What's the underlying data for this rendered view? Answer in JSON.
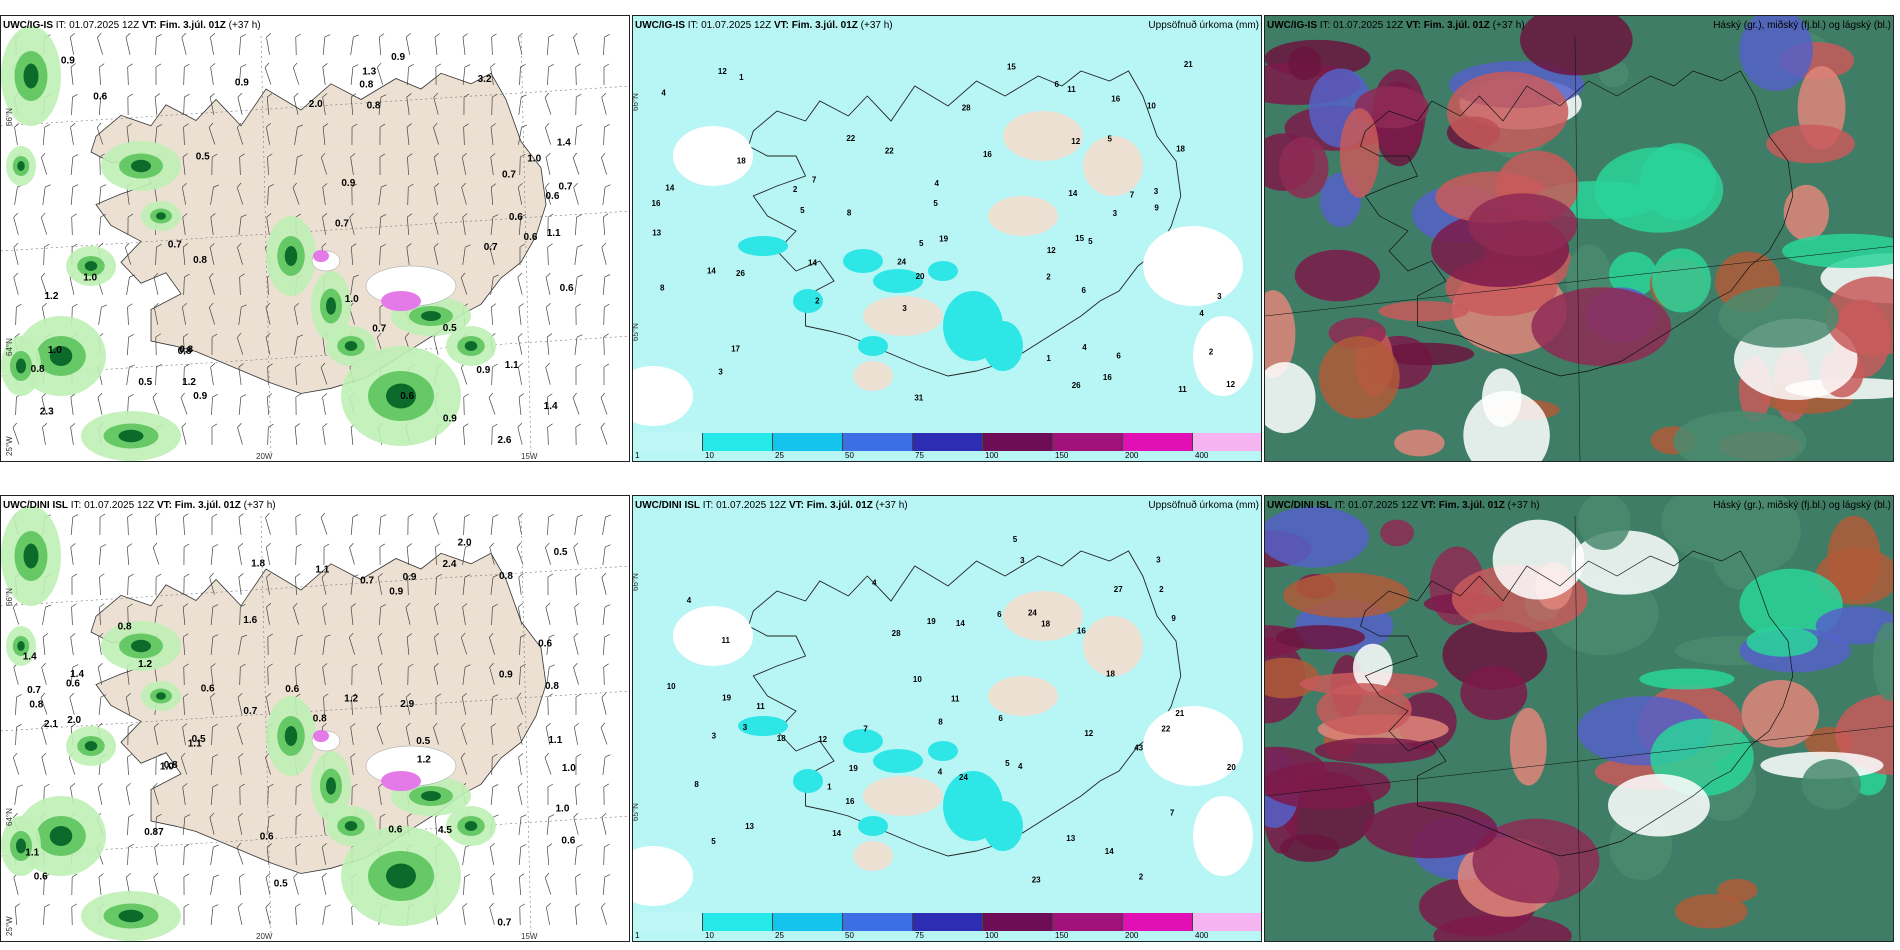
{
  "panels": {
    "row1_wind": {
      "model": "UWC/IG-IS",
      "it": "IT: 01.07.2025 12Z",
      "vt_label": "VT:",
      "vt": "Fim. 3.júl. 01Z",
      "lead": "(+37 h)",
      "title": ""
    },
    "row1_precip": {
      "model": "UWC/IG-IS",
      "it": "IT: 01.07.2025 12Z",
      "vt_label": "VT:",
      "vt": "Fim. 3.júl. 01Z",
      "lead": "(+37 h)",
      "title": "Uppsöfnuð úrkoma (mm)"
    },
    "row1_cloud": {
      "model": "UWC/IG-IS",
      "it": "IT: 01.07.2025 12Z",
      "vt_label": "VT:",
      "vt": "Fim. 3.júl. 01Z",
      "lead": "(+37 h)",
      "title": "Háský (gr.), miðský (fj.bl.) og lágský (bl.)"
    },
    "row2_wind": {
      "model": "UWC/DINI ISL",
      "it": "IT: 01.07.2025 12Z",
      "vt_label": "VT:",
      "vt": "Fim. 3.júl. 01Z",
      "lead": "(+37 h)",
      "title": ""
    },
    "row2_precip": {
      "model": "UWC/DINI ISL",
      "it": "IT: 01.07.2025 12Z",
      "vt_label": "VT:",
      "vt": "Fim. 3.júl. 01Z",
      "lead": "(+37 h)",
      "title": "Uppsöfnuð úrkoma (mm)"
    },
    "row2_cloud": {
      "model": "UWC/DINI ISL",
      "it": "IT: 01.07.2025 12Z",
      "vt_label": "VT:",
      "vt": "Fim. 3.júl. 01Z",
      "lead": "(+37 h)",
      "title": "Háský (gr.), miðský (fj.bl.) og lágský (bl.)"
    }
  },
  "axes": {
    "lat_66": "66°N",
    "lat_64": "64°N",
    "lon_25": "25°W",
    "lon_20": "20W",
    "lon_15": "15W",
    "lat_65": "65°N"
  },
  "colorbar": {
    "ticks": [
      "1",
      "10",
      "25",
      "50",
      "75",
      "100",
      "150",
      "200",
      "400"
    ],
    "colors": [
      "#bff7f7",
      "#25e8e8",
      "#14c4ec",
      "#3c6ee6",
      "#2d2db4",
      "#6e0d55",
      "#a0127a",
      "#e010b4",
      "#f5b4f0"
    ]
  },
  "colors": {
    "land": "#ece0d2",
    "sea_precip": "#b8f5f5",
    "precip_mid": "#2ee6e6",
    "green_light": "#bff0b5",
    "green_mid": "#5cc45c",
    "green_dark": "#0c6b2a",
    "cloud_high": "#7d1a4a",
    "cloud_mid": "#4a8a6e",
    "cloud_low": "#2ad49a"
  },
  "wind_labels_row1": [
    "1.0",
    "0.6",
    "1.2",
    "0.6",
    "0.7",
    "0.9",
    "0.7",
    "0.8",
    "0.7",
    "0.8",
    "0.9",
    "0.6",
    "0.5",
    "0.6",
    "0.6",
    "0.9",
    "1.2",
    "1.4",
    "0.7",
    "0.9",
    "0.8",
    "0.8",
    "1.0",
    "2.0",
    "0.9",
    "0.5",
    "1.4",
    "1.1",
    "1.3",
    "0.8",
    "0.9",
    "1.0",
    "3.2",
    "0.5",
    "1.0",
    "0.6",
    "0.8",
    "0.9",
    "0.7",
    "1.1",
    "0.7",
    "2.3",
    "2.6"
  ],
  "wind_labels_row2": [
    "0.8",
    "1.4",
    "2.0",
    "1.1",
    "0.6",
    "0.8",
    "0.6",
    "0.6",
    "0.5",
    "0.8",
    "0.6",
    "0.87",
    "0.5",
    "0.6",
    "0.8",
    "0.5",
    "0.7",
    "0.6",
    "0.5",
    "0.9",
    "1.2",
    "0.8",
    "1.1",
    "0.7",
    "1.0",
    "0.6",
    "0.9",
    "1.0",
    "0.9",
    "0.7",
    "1.1",
    "1.4",
    "0.6",
    "1.2",
    "0.8",
    "1.2",
    "1.6",
    "1.1",
    "2.1",
    "1.8",
    "0.7",
    "2.4",
    "2.0",
    "1.0",
    "2.9",
    "4.5"
  ],
  "precip_labels_row1": [
    "2",
    "3",
    "7",
    "4",
    "1",
    "5",
    "3",
    "4",
    "2",
    "16",
    "15",
    "12",
    "8",
    "6",
    "2",
    "11",
    "10",
    "14",
    "16",
    "22",
    "20",
    "13",
    "14",
    "6",
    "9",
    "17",
    "18",
    "12",
    "12",
    "26",
    "18",
    "15",
    "14",
    "4",
    "8",
    "3",
    "16",
    "19",
    "5",
    "26",
    "24",
    "14",
    "28",
    "31",
    "16",
    "22",
    "21",
    "7",
    "5",
    "1",
    "3",
    "2",
    "5",
    "6",
    "4",
    "5",
    "11",
    "12",
    "3"
  ],
  "precip_labels_row2": [
    "2",
    "3",
    "5",
    "4",
    "7",
    "11",
    "13",
    "12",
    "16",
    "19",
    "18",
    "14",
    "16",
    "4",
    "6",
    "8",
    "12",
    "11",
    "10",
    "5",
    "3",
    "14",
    "18",
    "20",
    "21",
    "19",
    "18",
    "8",
    "10",
    "2",
    "4",
    "3",
    "1",
    "24",
    "28",
    "43",
    "22",
    "13",
    "27",
    "23",
    "19",
    "24",
    "14",
    "5",
    "7",
    "11",
    "9",
    "3",
    "6",
    "4"
  ]
}
